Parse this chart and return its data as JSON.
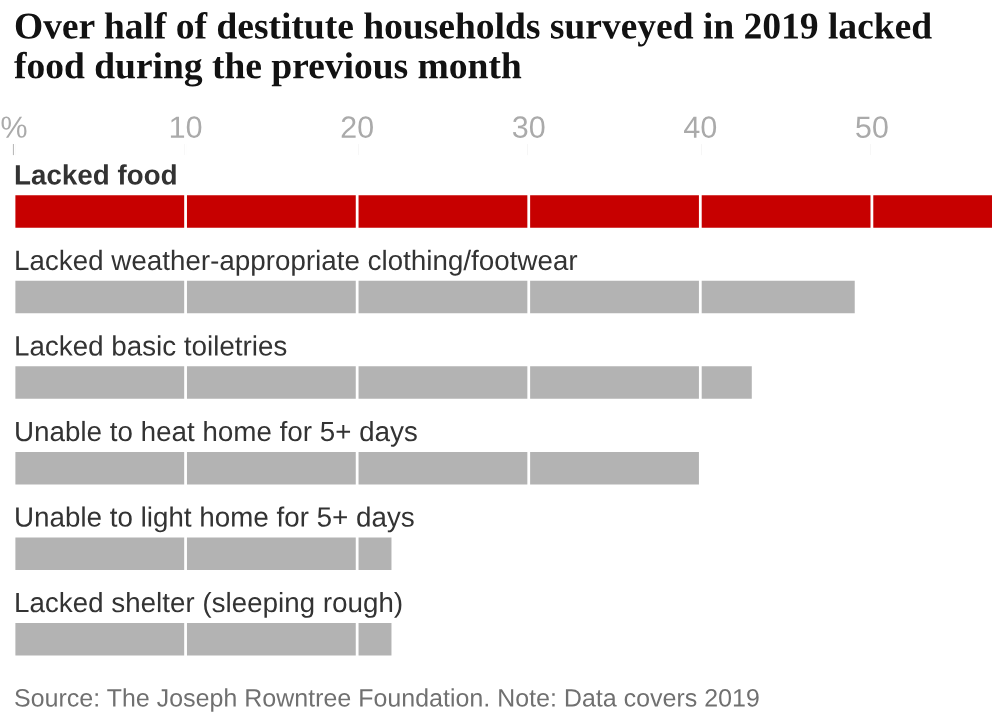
{
  "chart_data": {
    "type": "bar",
    "orientation": "horizontal",
    "title": "Over half of destitute households surveyed in 2019 lacked food during the previous month",
    "categories": [
      "Lacked food",
      "Lacked weather-appropriate clothing/footwear",
      "Lacked basic toiletries",
      "Unable to heat home for 5+ days",
      "Unable to light home for 5+ days",
      "Lacked shelter (sleeping rough)"
    ],
    "values": [
      57,
      49,
      43,
      40,
      22,
      22
    ],
    "colors": [
      "#c70000",
      "#b3b3b3",
      "#b3b3b3",
      "#b3b3b3",
      "#b3b3b3",
      "#b3b3b3"
    ],
    "xlim": [
      0,
      57
    ],
    "xticks": [
      {
        "value": 0,
        "label": "%"
      },
      10,
      20,
      30,
      40,
      50
    ],
    "grid": "x",
    "annotations": [
      "Source: The Joseph Rowntree Foundation. Note: Data covers 2019"
    ]
  }
}
